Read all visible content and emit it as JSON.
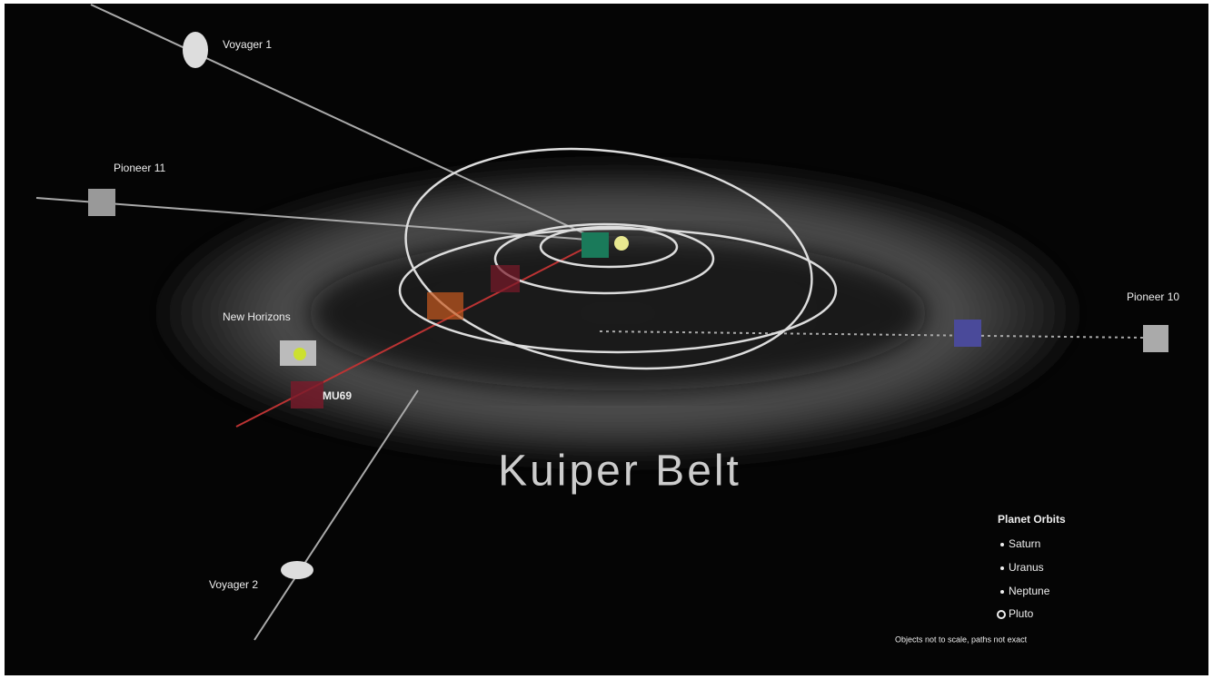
{
  "title": "Kuiper Belt",
  "spacecraft": [
    {
      "label": "Voyager 1"
    },
    {
      "label": "Pioneer 11"
    },
    {
      "label": "New Horizons"
    },
    {
      "label": "Pioneer 10"
    },
    {
      "label": "Voyager 2"
    }
  ],
  "objects": [
    {
      "label": "MU69"
    }
  ],
  "legend": {
    "title": "Planet Orbits",
    "items": [
      "Saturn",
      "Uranus",
      "Neptune",
      "Pluto"
    ]
  },
  "note": "Objects not to scale, paths not exact"
}
